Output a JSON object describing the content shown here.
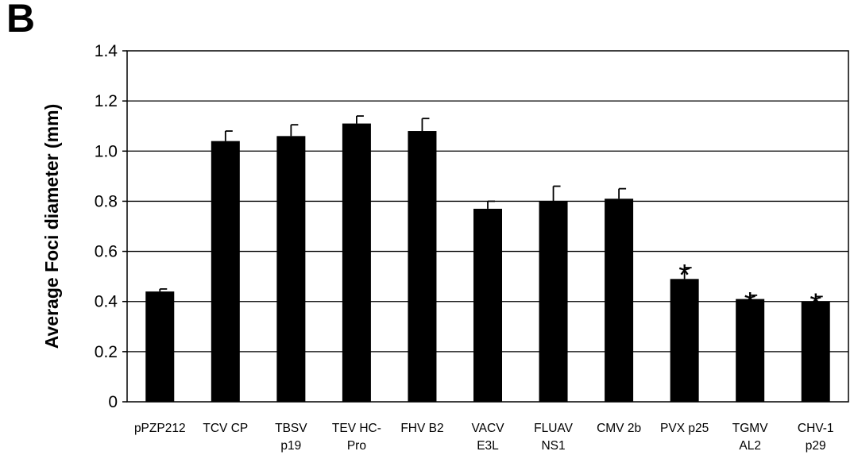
{
  "panel_label": "B",
  "chart_data": {
    "type": "bar",
    "ylabel": "Average Foci diameter (mm)",
    "xlabel": "",
    "ylim": [
      0,
      1.4
    ],
    "yticks": [
      "0",
      "0.2",
      "0.4",
      "0.6",
      "0.8",
      "1.0",
      "1.2",
      "1.4"
    ],
    "ytick_values": [
      0,
      0.2,
      0.4,
      0.6,
      0.8,
      1.0,
      1.2,
      1.4
    ],
    "grid": true,
    "categories": [
      [
        "pPZP212"
      ],
      [
        "TCV CP"
      ],
      [
        "TBSV",
        "p19"
      ],
      [
        "TEV HC-",
        "Pro"
      ],
      [
        "FHV B2"
      ],
      [
        "VACV",
        "E3L"
      ],
      [
        "FLUAV",
        "NS1"
      ],
      [
        "CMV 2b"
      ],
      [
        "PVX p25"
      ],
      [
        "TGMV",
        "AL2"
      ],
      [
        "CHV-1",
        "p29"
      ]
    ],
    "values": [
      0.44,
      1.04,
      1.06,
      1.11,
      1.08,
      0.77,
      0.8,
      0.81,
      0.49,
      0.41,
      0.4
    ],
    "errors": [
      0.01,
      0.04,
      0.045,
      0.03,
      0.05,
      0.03,
      0.06,
      0.04,
      0.045,
      0.015,
      0.02
    ],
    "significance": [
      "",
      "",
      "",
      "",
      "",
      "",
      "",
      "",
      "*",
      "*",
      "*"
    ],
    "bar_color": "#000000"
  }
}
